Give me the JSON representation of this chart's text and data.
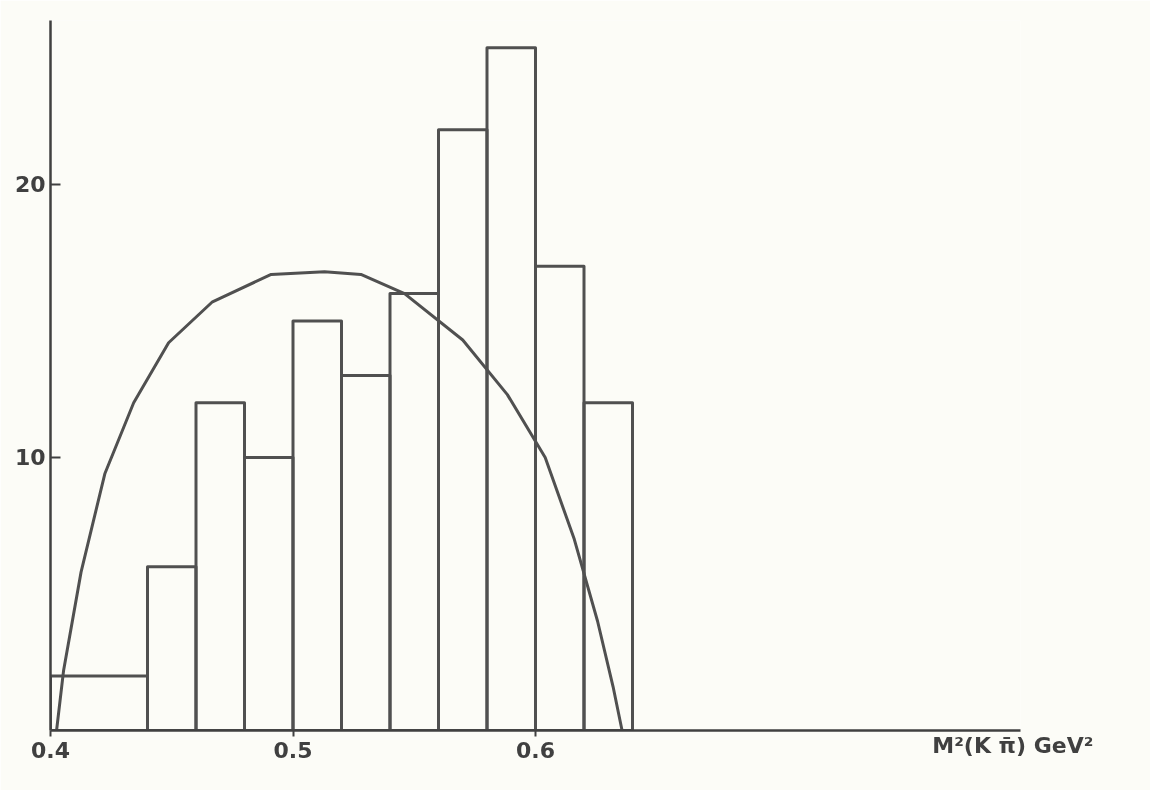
{
  "chart_data": {
    "type": "histogram",
    "xlabel": "M²(K π̄)   GeV²",
    "bins": [
      0.4,
      0.44,
      0.46,
      0.48,
      0.5,
      0.52,
      0.54,
      0.56,
      0.58,
      0.6,
      0.62,
      0.64
    ],
    "values": [
      2,
      6,
      12,
      10,
      15,
      13,
      16,
      22,
      25,
      17,
      12
    ],
    "color": "#505050",
    "series": [
      {
        "type": "line",
        "color": "#505050",
        "x": [
          0.4025,
          0.4054,
          0.4126,
          0.4224,
          0.4343,
          0.4487,
          0.4668,
          0.491,
          0.513,
          0.528,
          0.546,
          0.57,
          0.5884,
          0.604,
          0.616,
          0.6256,
          0.632,
          0.6357
        ],
        "values": [
          0,
          2.2,
          5.8,
          9.4,
          12.0,
          14.2,
          15.7,
          16.7,
          16.8,
          16.7,
          16.0,
          14.3,
          12.3,
          10.0,
          7.0,
          4.0,
          1.6,
          0
        ]
      }
    ],
    "xlim": [
      0.4,
      0.8
    ],
    "ylim": [
      0,
      26
    ],
    "xticks": [
      0.4,
      0.5,
      0.6
    ],
    "yticks": [
      10,
      20
    ],
    "grid": false
  }
}
